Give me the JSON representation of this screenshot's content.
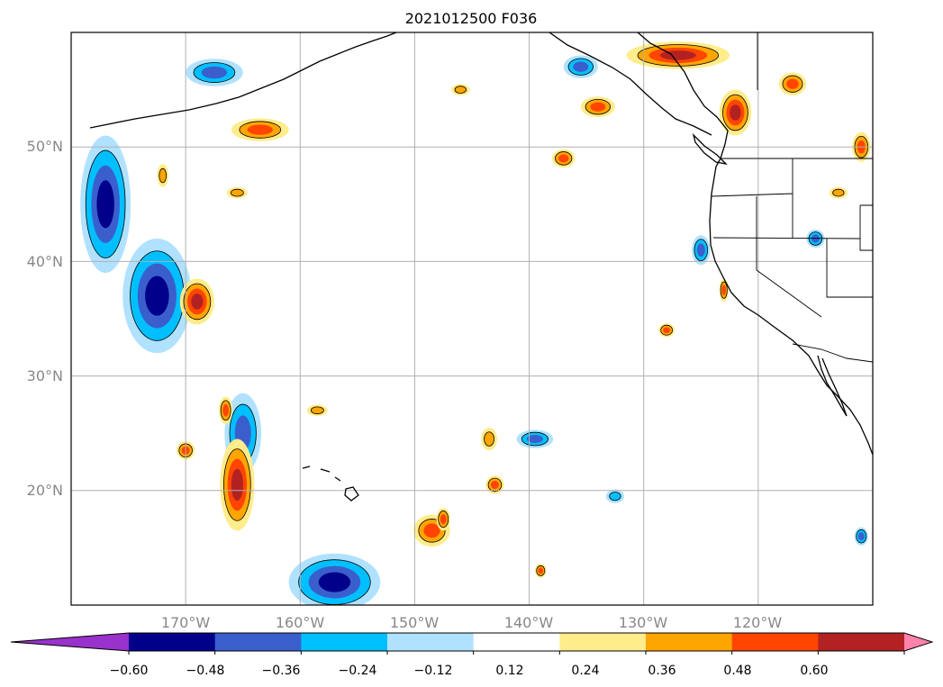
{
  "title": "2021012500 F036",
  "latitude_labels": [
    "50°N",
    "40°N",
    "30°N",
    "20°N"
  ],
  "longitude_labels": [
    "170°W",
    "160°W",
    "150°W",
    "140°W",
    "130°W",
    "120°W"
  ],
  "map": {
    "lon_range": [
      -180,
      -110
    ],
    "lat_range": [
      10,
      60
    ],
    "grid_lons": [
      -170,
      -160,
      -150,
      -140,
      -130,
      -120
    ],
    "grid_lats": [
      20,
      30,
      40,
      50
    ],
    "grid": true,
    "gridline_color": "#b0b0b0",
    "coastline_color": "#000000"
  },
  "colorbar": {
    "orientation": "horizontal",
    "extend": "both",
    "tick_labels": [
      "−0.60",
      "−0.48",
      "−0.36",
      "−0.24",
      "−0.12",
      "0.12",
      "0.24",
      "0.36",
      "0.48",
      "0.60"
    ],
    "colors": [
      "#9932cc",
      "#00008b",
      "#3a5fcd",
      "#00bfff",
      "#b0e2ff",
      "#ffffff",
      "#ffec8b",
      "#ffa500",
      "#ff4500",
      "#b22222",
      "#ff82ab"
    ]
  },
  "features": [
    {
      "sign": "neg",
      "lon": -177,
      "lat": 45,
      "rx": 2.2,
      "ry": 6,
      "level": 3
    },
    {
      "sign": "neg",
      "lon": -172.5,
      "lat": 37,
      "rx": 3,
      "ry": 5,
      "level": 3
    },
    {
      "sign": "neg",
      "lon": -167.5,
      "lat": 56.5,
      "rx": 2.5,
      "ry": 1.2,
      "level": 2
    },
    {
      "sign": "neg",
      "lon": -165,
      "lat": 25,
      "rx": 1.6,
      "ry": 3.5,
      "level": 2
    },
    {
      "sign": "neg",
      "lon": -157,
      "lat": 12,
      "rx": 4,
      "ry": 2.5,
      "level": 3
    },
    {
      "sign": "neg",
      "lon": -139.5,
      "lat": 24.5,
      "rx": 1.6,
      "ry": 0.8,
      "level": 2
    },
    {
      "sign": "neg",
      "lon": -135.5,
      "lat": 57,
      "rx": 1.5,
      "ry": 1,
      "level": 2
    },
    {
      "sign": "neg",
      "lon": -125,
      "lat": 41,
      "rx": 0.8,
      "ry": 1.3,
      "level": 2
    },
    {
      "sign": "neg",
      "lon": -115,
      "lat": 42,
      "rx": 0.8,
      "ry": 0.8,
      "level": 2
    },
    {
      "sign": "neg",
      "lon": -132.5,
      "lat": 19.5,
      "rx": 0.8,
      "ry": 0.6,
      "level": 1
    },
    {
      "sign": "neg",
      "lon": -111,
      "lat": 16,
      "rx": 0.6,
      "ry": 0.8,
      "level": 2
    },
    {
      "sign": "pos",
      "lon": -127,
      "lat": 58,
      "rx": 4.5,
      "ry": 1.2,
      "level": 3
    },
    {
      "sign": "pos",
      "lon": -122,
      "lat": 53,
      "rx": 1.4,
      "ry": 2,
      "level": 3
    },
    {
      "sign": "pos",
      "lon": -163.5,
      "lat": 51.5,
      "rx": 2.5,
      "ry": 1,
      "level": 2
    },
    {
      "sign": "pos",
      "lon": -169,
      "lat": 36.5,
      "rx": 1.5,
      "ry": 2,
      "level": 3
    },
    {
      "sign": "pos",
      "lon": -165.5,
      "lat": 20.5,
      "rx": 1.5,
      "ry": 4,
      "level": 3
    },
    {
      "sign": "pos",
      "lon": -148.5,
      "lat": 16.5,
      "rx": 1.6,
      "ry": 1.4,
      "level": 2
    },
    {
      "sign": "pos",
      "lon": -134,
      "lat": 53.5,
      "rx": 1.5,
      "ry": 0.9,
      "level": 2
    },
    {
      "sign": "pos",
      "lon": -117,
      "lat": 55.5,
      "rx": 1.2,
      "ry": 1,
      "level": 2
    },
    {
      "sign": "pos",
      "lon": -111,
      "lat": 50,
      "rx": 0.8,
      "ry": 1.3,
      "level": 2
    },
    {
      "sign": "pos",
      "lon": -137,
      "lat": 49,
      "rx": 1,
      "ry": 0.8,
      "level": 2
    },
    {
      "sign": "pos",
      "lon": -143,
      "lat": 20.5,
      "rx": 0.8,
      "ry": 0.8,
      "level": 2
    },
    {
      "sign": "pos",
      "lon": -170,
      "lat": 23.5,
      "rx": 0.8,
      "ry": 0.8,
      "level": 2
    },
    {
      "sign": "pos",
      "lon": -166.5,
      "lat": 27,
      "rx": 0.6,
      "ry": 1.2,
      "level": 2
    },
    {
      "sign": "pos",
      "lon": -128,
      "lat": 34,
      "rx": 0.7,
      "ry": 0.6,
      "level": 2
    },
    {
      "sign": "pos",
      "lon": -123,
      "lat": 37.5,
      "rx": 0.4,
      "ry": 1,
      "level": 2
    },
    {
      "sign": "pos",
      "lon": -172,
      "lat": 47.5,
      "rx": 0.5,
      "ry": 1,
      "level": 1
    },
    {
      "sign": "pos",
      "lon": -165.5,
      "lat": 46,
      "rx": 0.9,
      "ry": 0.5,
      "level": 1
    },
    {
      "sign": "pos",
      "lon": -158.5,
      "lat": 27,
      "rx": 0.9,
      "ry": 0.5,
      "level": 1
    },
    {
      "sign": "pos",
      "lon": -146,
      "lat": 55,
      "rx": 0.8,
      "ry": 0.5,
      "level": 1
    },
    {
      "sign": "pos",
      "lon": -113,
      "lat": 46,
      "rx": 0.8,
      "ry": 0.5,
      "level": 1
    },
    {
      "sign": "pos",
      "lon": -143.5,
      "lat": 24.5,
      "rx": 0.7,
      "ry": 1,
      "level": 1
    },
    {
      "sign": "pos",
      "lon": -147.5,
      "lat": 17.5,
      "rx": 0.6,
      "ry": 1,
      "level": 2
    },
    {
      "sign": "pos",
      "lon": -139,
      "lat": 13,
      "rx": 0.5,
      "ry": 0.6,
      "level": 2
    }
  ]
}
